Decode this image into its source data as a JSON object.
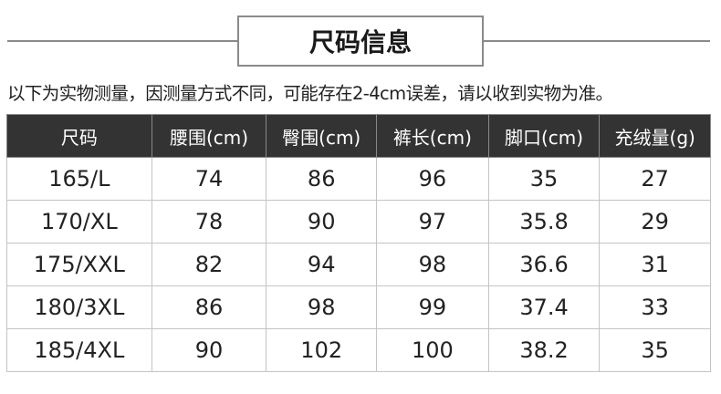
{
  "title": "尺码信息",
  "note": "以下为实物测量，因测量方式不同，可能存在2-4cm误差，请以收到实物为准。",
  "table": {
    "headers": [
      "尺码",
      "腰围(cm)",
      "臀围(cm)",
      "裤长(cm)",
      "脚口(cm)",
      "充绒量(g)"
    ],
    "rows": [
      [
        "165/L",
        "74",
        "86",
        "96",
        "35",
        "27"
      ],
      [
        "170/XL",
        "78",
        "90",
        "97",
        "35.8",
        "29"
      ],
      [
        "175/XXL",
        "82",
        "94",
        "98",
        "36.6",
        "31"
      ],
      [
        "180/3XL",
        "86",
        "98",
        "99",
        "37.4",
        "33"
      ],
      [
        "185/4XL",
        "90",
        "102",
        "100",
        "38.2",
        "35"
      ]
    ]
  }
}
